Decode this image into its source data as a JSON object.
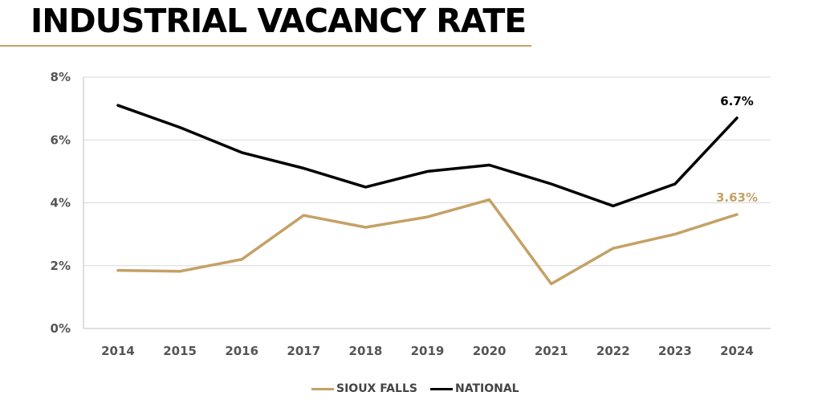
{
  "page": {
    "title": "INDUSTRIAL VACANCY RATE"
  },
  "colors": {
    "sioux_falls": "#c4a165",
    "national": "#000000",
    "grid": "#d9d9d9",
    "title_rule": "#c4a165"
  },
  "chart_data": {
    "type": "line",
    "title": "INDUSTRIAL VACANCY RATE",
    "xlabel": "",
    "ylabel": "",
    "categories": [
      "2014",
      "2015",
      "2016",
      "2017",
      "2018",
      "2019",
      "2020",
      "2021",
      "2022",
      "2023",
      "2024"
    ],
    "y_ticks": [
      "0%",
      "2%",
      "4%",
      "6%",
      "8%"
    ],
    "ylim": [
      0,
      8
    ],
    "grid": true,
    "legend_position": "bottom-center",
    "series": [
      {
        "name": "SIOUX FALLS",
        "color": "#c4a165",
        "values": [
          1.85,
          1.82,
          2.2,
          3.6,
          3.22,
          3.55,
          4.1,
          1.42,
          2.55,
          3.0,
          3.63
        ],
        "end_label": "3.63%"
      },
      {
        "name": "NATIONAL",
        "color": "#000000",
        "values": [
          7.1,
          6.4,
          5.6,
          5.1,
          4.5,
          5.0,
          5.2,
          4.6,
          3.9,
          4.6,
          6.7
        ],
        "end_label": "6.7%"
      }
    ]
  }
}
